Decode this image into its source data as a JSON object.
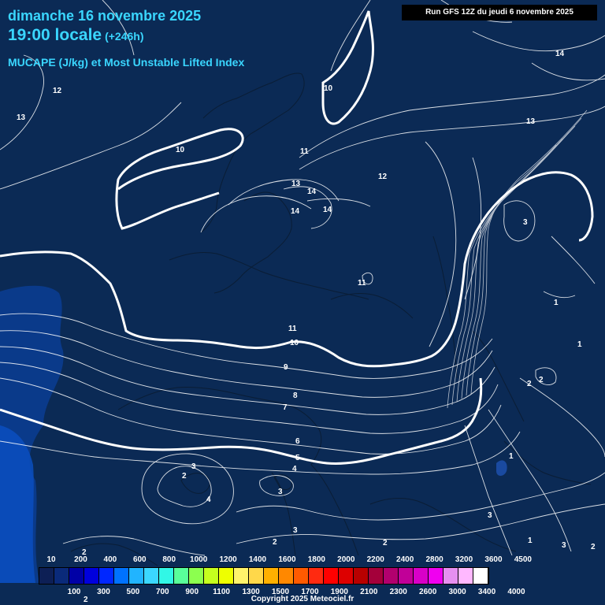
{
  "header": {
    "date": "dimanche 16 novembre 2025",
    "time": "19:00 locale",
    "lead": "(+246h)",
    "title": "MUCAPE (J/kg) et Most Unstable Lifted Index"
  },
  "run_label": "Run GFS 12Z du jeudi 6 novembre 2025",
  "contour_labels": [
    "14",
    "12",
    "13",
    "10",
    "10",
    "11",
    "13",
    "12",
    "14",
    "13",
    "14",
    "14",
    "3",
    "11",
    "11",
    "1",
    "10",
    "1",
    "9",
    "2",
    "2",
    "8",
    "7",
    "6",
    "5",
    "4",
    "1",
    "3",
    "2",
    "4",
    "3",
    "3",
    "2",
    "3",
    "2",
    "1",
    "2",
    "3",
    "2",
    "2"
  ],
  "legend": {
    "upper_ticks": [
      "10",
      "200",
      "400",
      "600",
      "800",
      "1000",
      "1200",
      "1400",
      "1600",
      "1800",
      "2000",
      "2200",
      "2400",
      "2800",
      "3200",
      "3600",
      "4500"
    ],
    "lower_ticks": [
      "100",
      "300",
      "500",
      "700",
      "900",
      "1100",
      "1300",
      "1500",
      "1700",
      "1900",
      "2100",
      "2300",
      "2600",
      "3000",
      "3400",
      "4000"
    ],
    "colors": [
      "#0d1f55",
      "#0a2a7a",
      "#0000a6",
      "#0000dd",
      "#0027ff",
      "#0072ff",
      "#21b4ff",
      "#3bd8ff",
      "#31f7e6",
      "#59ff9a",
      "#8cff4f",
      "#c6ff1e",
      "#eeff00",
      "#fff36b",
      "#ffd84a",
      "#ffb000",
      "#ff8800",
      "#ff5a00",
      "#ff2a10",
      "#ff0000",
      "#dd0000",
      "#b80000",
      "#a4003a",
      "#b2006e",
      "#c10098",
      "#d800c8",
      "#f000f0",
      "#e68ff0",
      "#ffb8ff",
      "#ffffff"
    ]
  },
  "copyright": "Copyright 2025 Meteociel.fr"
}
